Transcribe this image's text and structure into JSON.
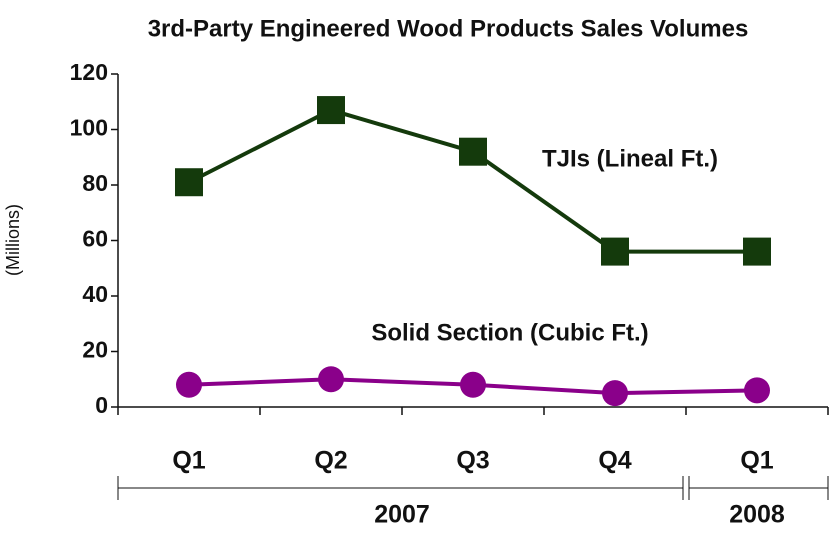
{
  "chart_data": {
    "type": "line",
    "title": "3rd-Party Engineered Wood Products Sales Volumes",
    "y_label": "(Millions)",
    "categories": [
      "Q1",
      "Q2",
      "Q3",
      "Q4",
      "Q1"
    ],
    "groups": [
      "2007",
      "2008"
    ],
    "series": [
      {
        "name": "TJIs (Lineal Ft.)",
        "color": "#143a0c",
        "marker": "square",
        "values": [
          81,
          107,
          92,
          56,
          56
        ]
      },
      {
        "name": "Solid Section (Cubic Ft.)",
        "color": "#8a008a",
        "marker": "circle",
        "values": [
          8,
          10,
          8,
          5,
          6
        ]
      }
    ],
    "ylim": [
      0,
      120
    ],
    "yticks": [
      0,
      20,
      40,
      60,
      80,
      100,
      120
    ],
    "grid": false
  }
}
